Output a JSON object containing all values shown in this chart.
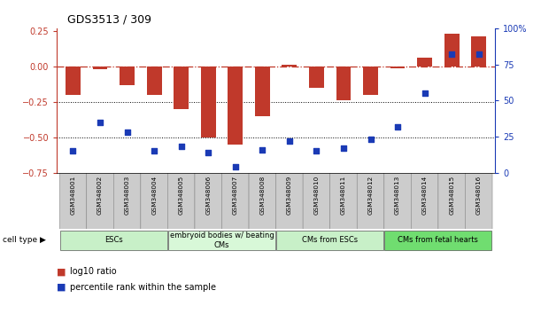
{
  "title": "GDS3513 / 309",
  "samples": [
    "GSM348001",
    "GSM348002",
    "GSM348003",
    "GSM348004",
    "GSM348005",
    "GSM348006",
    "GSM348007",
    "GSM348008",
    "GSM348009",
    "GSM348010",
    "GSM348011",
    "GSM348012",
    "GSM348013",
    "GSM348014",
    "GSM348015",
    "GSM348016"
  ],
  "log10_ratio": [
    -0.2,
    -0.02,
    -0.13,
    -0.2,
    -0.3,
    -0.5,
    -0.55,
    -0.35,
    0.01,
    -0.15,
    -0.24,
    -0.2,
    -0.01,
    0.065,
    0.23,
    0.21
  ],
  "percentile_rank": [
    15,
    35,
    28,
    15,
    18,
    14,
    4,
    16,
    22,
    15,
    17,
    23,
    32,
    55,
    82,
    82
  ],
  "ylim_left": [
    -0.75,
    0.27
  ],
  "ylim_right": [
    0,
    100
  ],
  "zero_line": 0.0,
  "bar_color": "#C0392B",
  "dot_color": "#1a3ab5",
  "cell_type_groups": [
    {
      "label": "ESCs",
      "start": 0,
      "end": 3,
      "color": "#c8f0c8"
    },
    {
      "label": "embryoid bodies w/ beating\nCMs",
      "start": 4,
      "end": 7,
      "color": "#d8f8d8"
    },
    {
      "label": "CMs from ESCs",
      "start": 8,
      "end": 11,
      "color": "#c8f0c8"
    },
    {
      "label": "CMs from fetal hearts",
      "start": 12,
      "end": 15,
      "color": "#70dd70"
    }
  ],
  "legend_bar_label": "log10 ratio",
  "legend_dot_label": "percentile rank within the sample",
  "left_ticks": [
    0.25,
    0.0,
    -0.25,
    -0.5,
    -0.75
  ],
  "right_ticks": [
    100,
    75,
    50,
    25,
    0
  ]
}
